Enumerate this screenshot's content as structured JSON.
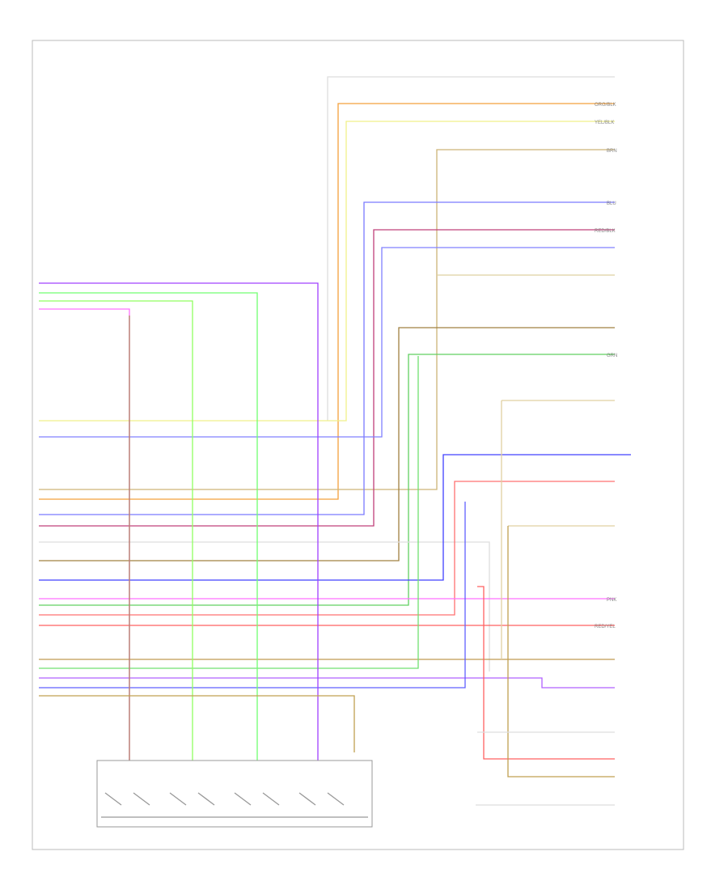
{
  "diagram": {
    "wire_labels": [
      "ORG/BLK",
      "YEL/BLK",
      "BRN",
      "BLU",
      "RED/BLK",
      "GRN",
      "PNK",
      "RED/YEL"
    ]
  }
}
